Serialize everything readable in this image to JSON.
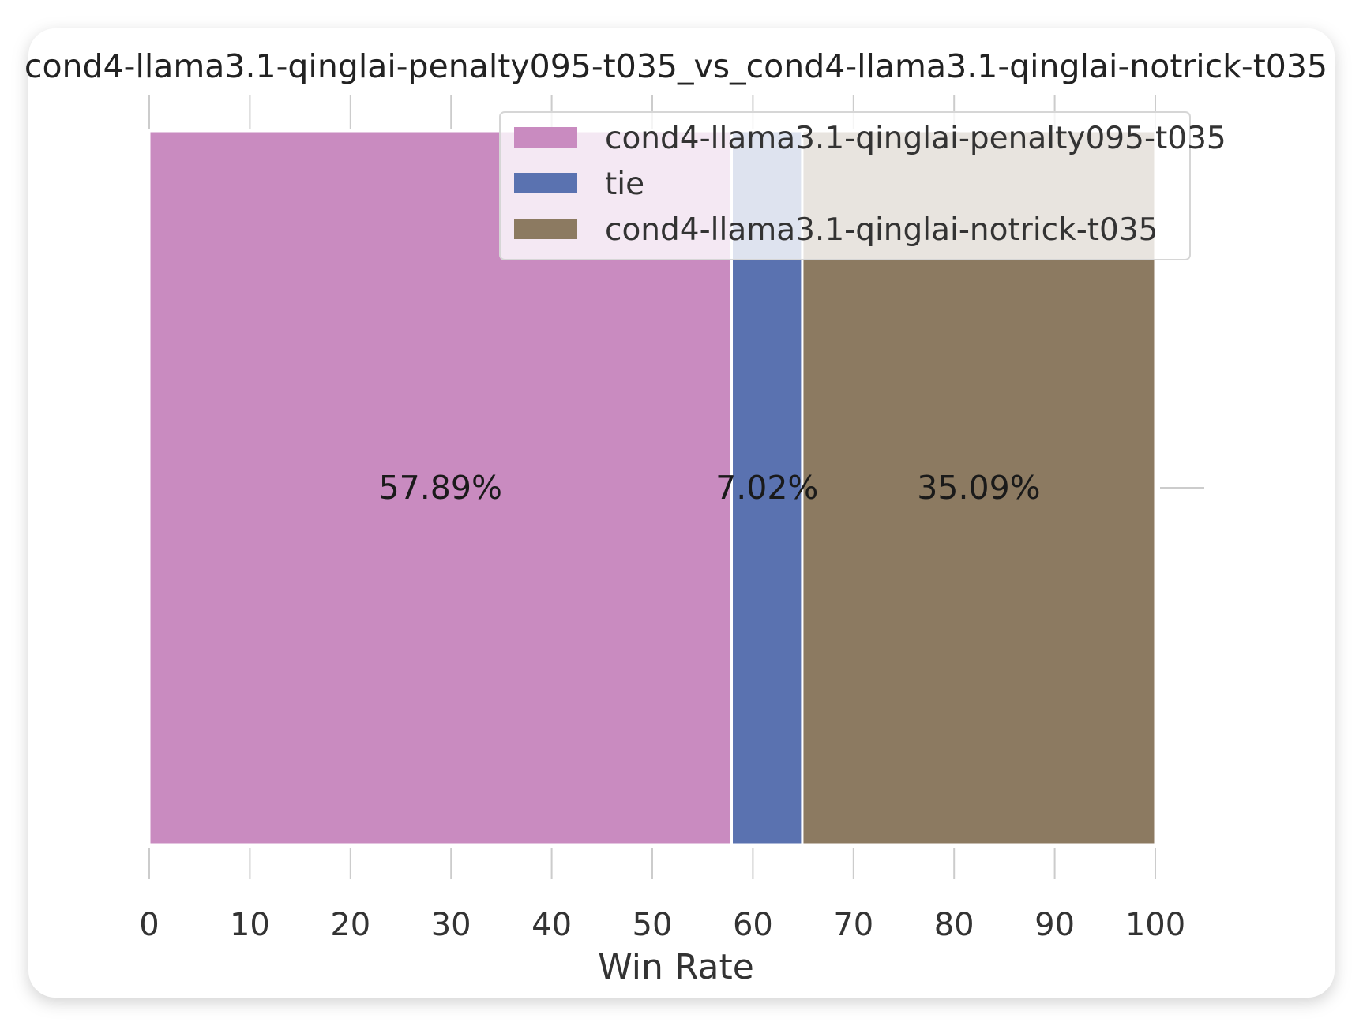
{
  "chart_data": {
    "type": "bar",
    "orientation": "horizontal",
    "stacked": true,
    "title": "cond4-llama3.1-qinglai-penalty095-t035_vs_cond4-llama3.1-qinglai-notrick-t035",
    "xlabel": "Win Rate",
    "ylabel": "",
    "xlim": [
      0,
      100
    ],
    "xticks": [
      "0",
      "10",
      "20",
      "30",
      "40",
      "50",
      "60",
      "70",
      "80",
      "90",
      "100"
    ],
    "grid": false,
    "legend_position": "upper-right",
    "series": [
      {
        "name": "cond4-llama3.1-qinglai-penalty095-t035",
        "value": 57.89,
        "label": "57.89%",
        "color": "#c98bc0"
      },
      {
        "name": "tie",
        "value": 7.02,
        "label": "7.02%",
        "color": "#5a72b0"
      },
      {
        "name": "cond4-llama3.1-qinglai-notrick-t035",
        "value": 35.09,
        "label": "35.09%",
        "color": "#8c7a61"
      }
    ]
  }
}
